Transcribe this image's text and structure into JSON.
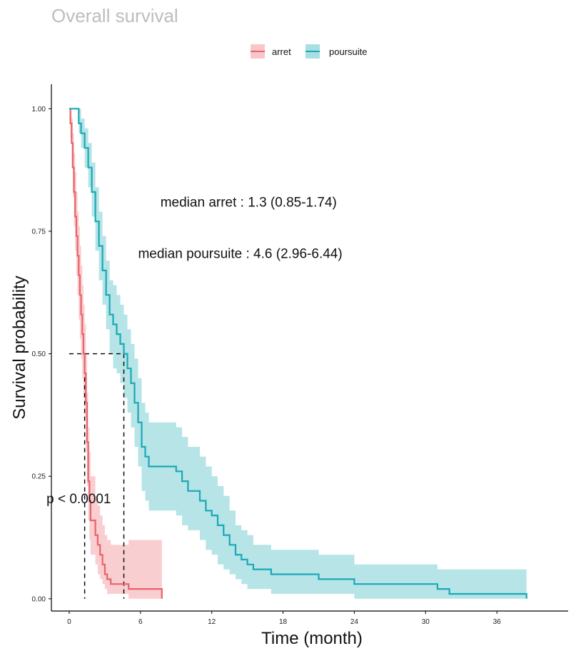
{
  "chart_data": {
    "type": "line",
    "title": "Overall survival",
    "xlabel": "Time (month)",
    "ylabel": "Survival probability",
    "xlim": [
      -1.5,
      42
    ],
    "ylim": [
      -0.025,
      1.05
    ],
    "x_ticks": [
      0,
      6,
      12,
      18,
      24,
      30,
      36
    ],
    "y_ticks": [
      0.0,
      0.25,
      0.5,
      0.75,
      1.0
    ],
    "x_tick_labels": [
      "0",
      "6",
      "12",
      "18",
      "24",
      "30",
      "36"
    ],
    "y_tick_labels": [
      "0.00",
      "0.25",
      "0.50",
      "0.75",
      "1.00"
    ],
    "legend": {
      "position": "top",
      "items": [
        {
          "label": "arret",
          "color": "#e8636a",
          "fill": "#f8c6c8"
        },
        {
          "label": "poursuite",
          "color": "#19a9b6",
          "fill": "#a9dfe3"
        }
      ]
    },
    "series": [
      {
        "name": "arret",
        "color": "#e8636a",
        "fill": "#f8c6c8",
        "x": [
          0,
          0.1,
          0.2,
          0.3,
          0.4,
          0.5,
          0.6,
          0.7,
          0.8,
          0.9,
          1.0,
          1.1,
          1.2,
          1.3,
          1.4,
          1.5,
          1.6,
          1.7,
          1.8,
          2.2,
          2.4,
          2.6,
          2.8,
          3.0,
          3.2,
          3.5,
          4.0,
          4.8,
          5.0,
          7.6,
          7.8
        ],
        "y": [
          1.0,
          0.97,
          0.93,
          0.88,
          0.83,
          0.78,
          0.74,
          0.7,
          0.66,
          0.62,
          0.58,
          0.54,
          0.5,
          0.46,
          0.4,
          0.32,
          0.24,
          0.2,
          0.16,
          0.13,
          0.11,
          0.09,
          0.07,
          0.05,
          0.04,
          0.03,
          0.03,
          0.03,
          0.02,
          0.02,
          0.0
        ],
        "lower": [
          1.0,
          0.94,
          0.88,
          0.82,
          0.76,
          0.71,
          0.66,
          0.62,
          0.57,
          0.53,
          0.49,
          0.45,
          0.41,
          0.37,
          0.3,
          0.23,
          0.16,
          0.12,
          0.09,
          0.07,
          0.05,
          0.04,
          0.03,
          0.02,
          0.01,
          0.01,
          0.01,
          0.01,
          0.0,
          0.0,
          0.0
        ],
        "upper": [
          1.0,
          1.0,
          0.98,
          0.95,
          0.91,
          0.87,
          0.83,
          0.79,
          0.76,
          0.72,
          0.68,
          0.64,
          0.6,
          0.56,
          0.5,
          0.42,
          0.35,
          0.3,
          0.25,
          0.21,
          0.19,
          0.17,
          0.15,
          0.13,
          0.12,
          0.11,
          0.11,
          0.11,
          0.12,
          0.12,
          0.0
        ]
      },
      {
        "name": "poursuite",
        "color": "#19a9b6",
        "fill": "#a9dfe3",
        "x": [
          0,
          0.5,
          0.8,
          1.0,
          1.3,
          1.6,
          1.9,
          2.2,
          2.5,
          2.8,
          3.1,
          3.4,
          3.7,
          4.0,
          4.3,
          4.6,
          4.9,
          5.2,
          5.5,
          5.8,
          6.1,
          6.4,
          6.7,
          7.0,
          9.0,
          9.5,
          10.0,
          11.0,
          11.5,
          12.0,
          12.5,
          13.0,
          13.5,
          14.0,
          14.5,
          15.0,
          15.5,
          16.0,
          17.0,
          18.0,
          20.0,
          21.0,
          24.0,
          26.0,
          28.0,
          31.0,
          32.0,
          38.0,
          38.5
        ],
        "y": [
          1.0,
          1.0,
          0.97,
          0.95,
          0.92,
          0.88,
          0.83,
          0.77,
          0.72,
          0.67,
          0.62,
          0.58,
          0.56,
          0.54,
          0.52,
          0.5,
          0.47,
          0.44,
          0.4,
          0.36,
          0.31,
          0.29,
          0.27,
          0.27,
          0.26,
          0.24,
          0.22,
          0.2,
          0.18,
          0.17,
          0.15,
          0.13,
          0.11,
          0.09,
          0.08,
          0.07,
          0.06,
          0.06,
          0.05,
          0.05,
          0.05,
          0.04,
          0.03,
          0.03,
          0.03,
          0.02,
          0.01,
          0.01,
          0.0
        ],
        "lower": [
          1.0,
          1.0,
          0.95,
          0.92,
          0.88,
          0.84,
          0.78,
          0.71,
          0.65,
          0.6,
          0.55,
          0.5,
          0.47,
          0.46,
          0.44,
          0.41,
          0.38,
          0.35,
          0.31,
          0.27,
          0.22,
          0.2,
          0.18,
          0.18,
          0.17,
          0.15,
          0.14,
          0.12,
          0.1,
          0.09,
          0.07,
          0.06,
          0.05,
          0.04,
          0.03,
          0.02,
          0.02,
          0.02,
          0.01,
          0.01,
          0.01,
          0.01,
          0.0,
          0.0,
          0.0,
          0.0,
          0.0,
          0.0,
          0.0
        ],
        "upper": [
          1.0,
          1.0,
          1.0,
          0.98,
          0.96,
          0.93,
          0.89,
          0.84,
          0.79,
          0.74,
          0.69,
          0.65,
          0.64,
          0.62,
          0.6,
          0.58,
          0.55,
          0.52,
          0.49,
          0.45,
          0.4,
          0.38,
          0.36,
          0.36,
          0.35,
          0.33,
          0.31,
          0.29,
          0.27,
          0.25,
          0.23,
          0.21,
          0.18,
          0.15,
          0.14,
          0.13,
          0.11,
          0.11,
          0.1,
          0.1,
          0.1,
          0.09,
          0.07,
          0.07,
          0.07,
          0.06,
          0.06,
          0.06,
          0.0
        ]
      }
    ],
    "median_lines": [
      {
        "series": "arret",
        "x": 1.3,
        "y": 0.5
      },
      {
        "series": "poursuite",
        "x": 4.6,
        "y": 0.5
      }
    ],
    "annotations": [
      {
        "text": "median arret : 1.3 (0.85-1.74)",
        "x": 15.1,
        "y": 0.8
      },
      {
        "text": "median poursuite : 4.6 (2.96-6.44)",
        "x": 14.4,
        "y": 0.695
      },
      {
        "text": "p < 0.0001",
        "x": 0.8,
        "y": 0.195
      }
    ]
  }
}
